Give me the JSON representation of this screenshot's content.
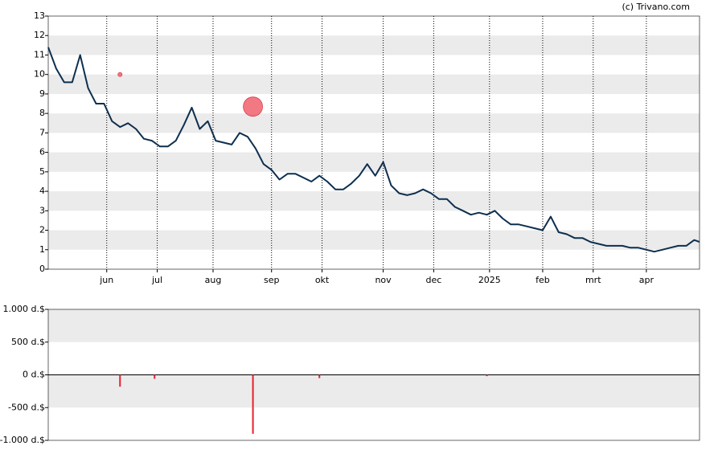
{
  "chart_data": [
    {
      "type": "line",
      "credit": "(c) Trivano.com",
      "x": [
        0,
        3,
        6,
        9,
        12,
        15,
        18,
        21,
        24,
        27,
        30,
        33,
        36,
        39,
        42,
        45,
        48,
        51,
        54,
        57,
        60,
        63,
        66,
        69,
        72,
        75,
        78,
        81,
        84,
        87,
        90,
        93,
        96,
        99,
        102,
        105,
        108,
        111,
        114,
        117,
        120,
        123,
        126,
        129,
        132,
        135,
        138,
        141,
        144,
        147,
        150,
        153,
        156,
        159,
        162,
        165,
        168,
        171,
        174,
        177,
        180,
        183,
        186,
        189,
        192,
        195,
        198,
        201,
        204,
        207,
        210,
        213,
        216,
        219,
        222,
        225,
        228,
        231,
        234,
        237,
        240,
        243,
        245
      ],
      "series": [
        {
          "color": "#0d2f4f",
          "values": [
            11.4,
            10.3,
            9.6,
            9.6,
            11.0,
            9.3,
            8.5,
            8.5,
            7.6,
            7.3,
            7.5,
            7.2,
            6.7,
            6.6,
            6.3,
            6.3,
            6.6,
            7.4,
            8.3,
            7.2,
            7.6,
            6.6,
            6.5,
            6.4,
            7.0,
            6.8,
            6.2,
            5.4,
            5.1,
            4.6,
            4.9,
            4.9,
            4.7,
            4.5,
            4.8,
            4.5,
            4.1,
            4.1,
            4.4,
            4.8,
            5.4,
            4.8,
            5.5,
            4.3,
            3.9,
            3.8,
            3.9,
            4.1,
            3.9,
            3.6,
            3.6,
            3.2,
            3.0,
            2.8,
            2.9,
            2.8,
            3.0,
            2.6,
            2.3,
            2.3,
            2.2,
            2.1,
            2.0,
            2.7,
            1.9,
            1.8,
            1.6,
            1.6,
            1.4,
            1.3,
            1.2,
            1.2,
            1.2,
            1.1,
            1.1,
            1.0,
            0.9,
            1.0,
            1.1,
            1.2,
            1.2,
            1.5,
            1.4
          ]
        }
      ],
      "bubbles": {
        "color": "#f0616e",
        "x": [
          27,
          77
        ],
        "values": [
          10,
          8.35
        ],
        "sizes": [
          40,
          900
        ]
      },
      "xlim": [
        0,
        245
      ],
      "xticks": [
        {
          "value": 22,
          "label": "jun"
        },
        {
          "value": 41,
          "label": "jul"
        },
        {
          "value": 62,
          "label": "aug"
        },
        {
          "value": 84,
          "label": "sep"
        },
        {
          "value": 103,
          "label": "okt"
        },
        {
          "value": 126,
          "label": "nov"
        },
        {
          "value": 145,
          "label": "dec"
        },
        {
          "value": 166,
          "label": "2025"
        },
        {
          "value": 186,
          "label": "feb"
        },
        {
          "value": 205,
          "label": "mrt"
        },
        {
          "value": 225,
          "label": "apr"
        }
      ],
      "ylim": [
        0,
        13
      ],
      "yticks": [
        0,
        1,
        2,
        3,
        4,
        5,
        6,
        7,
        8,
        9,
        10,
        11,
        12,
        13
      ],
      "grid": true
    },
    {
      "type": "bar",
      "x": [
        27,
        40,
        77,
        102,
        165
      ],
      "values": [
        -180,
        -60,
        -900,
        -50,
        -20
      ],
      "color": "#e8202e",
      "xlim": [
        0,
        245
      ],
      "ylim": [
        -1000,
        1000
      ],
      "yticks": [
        {
          "value": -1000,
          "label": "-1.000 d.$"
        },
        {
          "value": -500,
          "label": "-500 d.$"
        },
        {
          "value": 0,
          "label": "0 d.$"
        },
        {
          "value": 500,
          "label": "500 d.$"
        },
        {
          "value": 1000,
          "label": "1.000 d.$"
        }
      ]
    }
  ]
}
